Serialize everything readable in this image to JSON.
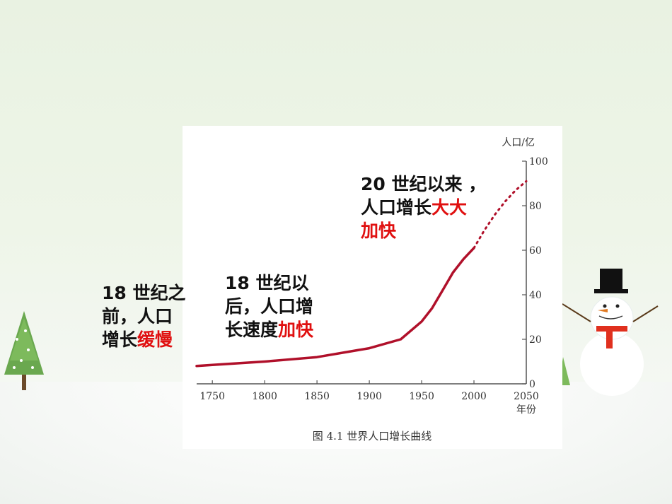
{
  "slide": {
    "annotations": {
      "before18": {
        "line1": "18 世纪之",
        "line2": "前，人口",
        "line3_a": "增长",
        "line3_b": "缓慢"
      },
      "after18": {
        "line1": "18 世纪以",
        "line2": "后，人口增",
        "line3_a": "长速度",
        "line3_b": "加快"
      },
      "since20": {
        "line1": "20 世纪以来 ，",
        "line2_a": "人口增长",
        "line2_b": "大大",
        "line3": "加快"
      }
    },
    "colors": {
      "highlight": "#e01010",
      "curve": "#b0102a",
      "axis": "#555555"
    }
  },
  "chart_data": {
    "type": "line",
    "title": "图 4.1    世界人口增长曲线",
    "xlabel": "年份",
    "ylabel": "人口/亿",
    "x_ticks": [
      "1750",
      "1800",
      "1850",
      "1900",
      "1950",
      "2000",
      "2050"
    ],
    "y_ticks": [
      "0",
      "20",
      "40",
      "60",
      "80",
      "100"
    ],
    "xlim": [
      1735,
      2050
    ],
    "ylim": [
      0,
      100
    ],
    "y_axis_position": "right",
    "series": [
      {
        "style": "solid",
        "x": [
          1735,
          1750,
          1800,
          1850,
          1900,
          1930,
          1950,
          1960,
          1970,
          1980,
          1990,
          2000
        ],
        "y": [
          8,
          8.5,
          10,
          12,
          16,
          20,
          28,
          34,
          42,
          50,
          56,
          61
        ]
      },
      {
        "style": "dotted",
        "x": [
          2000,
          2010,
          2020,
          2030,
          2040,
          2050
        ],
        "y": [
          61,
          69,
          76,
          82,
          87,
          91
        ]
      }
    ]
  }
}
